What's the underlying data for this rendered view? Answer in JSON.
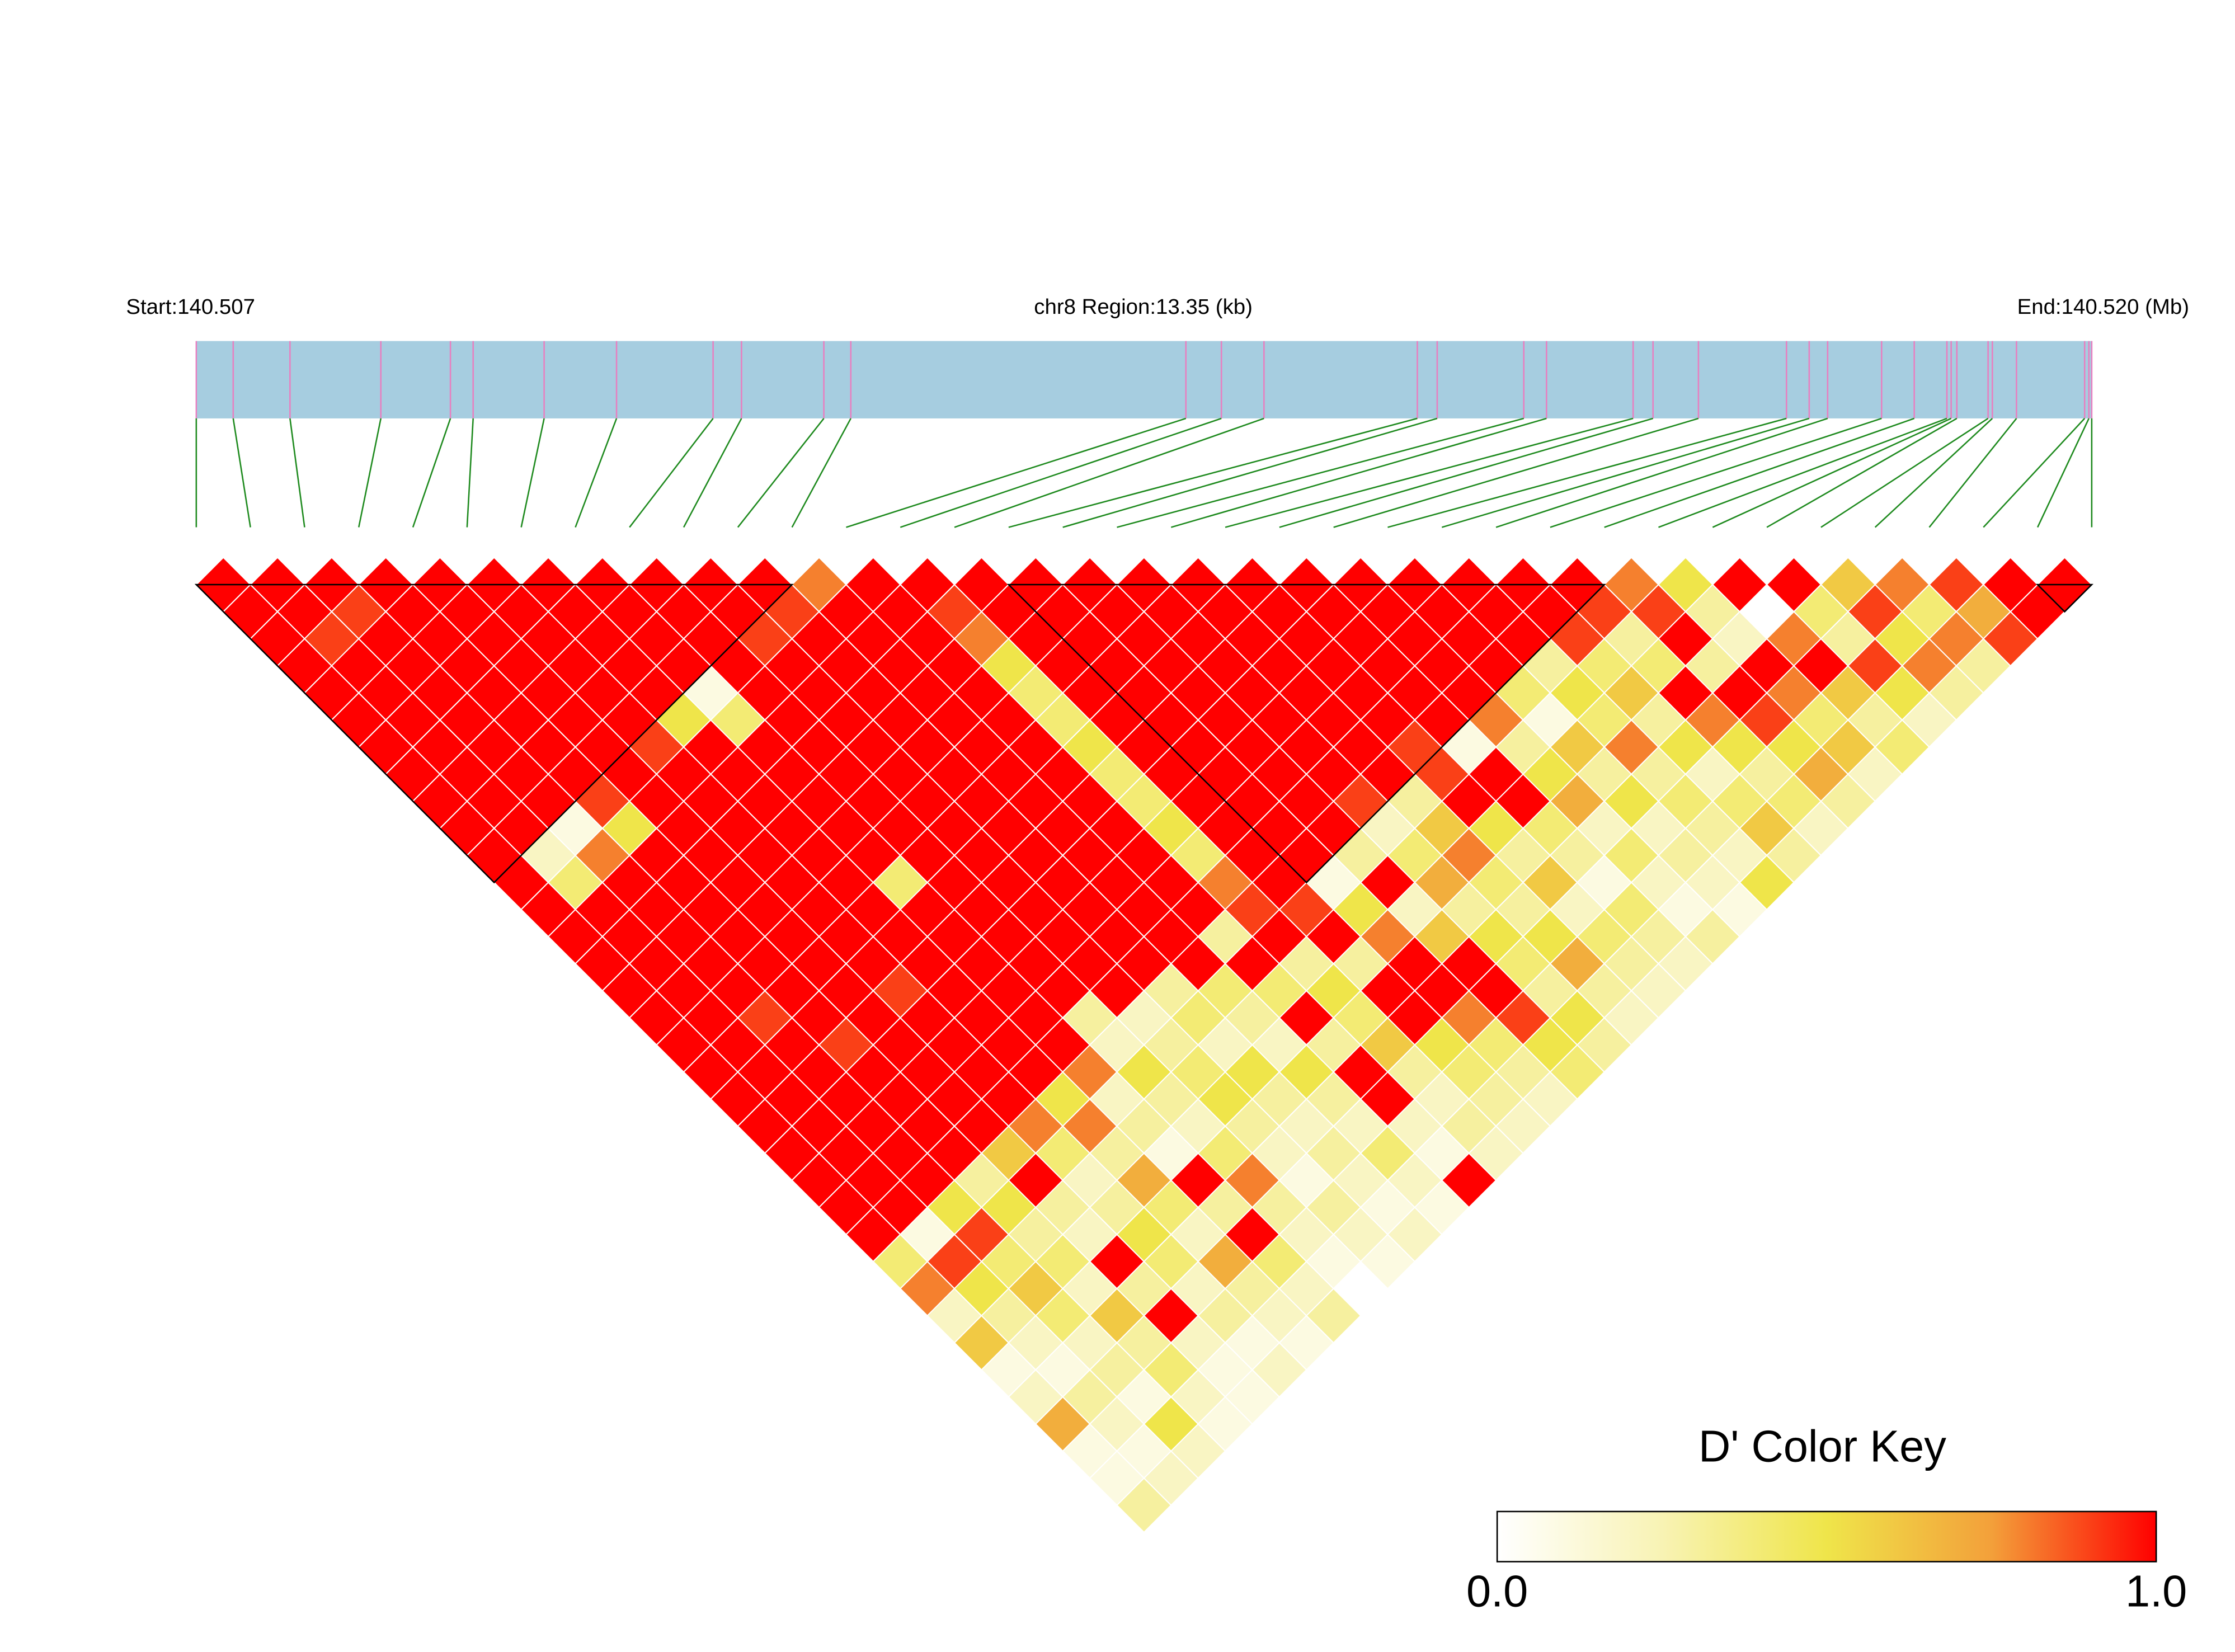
{
  "chart_data": {
    "type": "ld_heatmap",
    "start_label": "Start:140.507",
    "region_label": "chr8 Region:13.35 (kb)",
    "end_label": "End:140.520 (Mb)",
    "key_title": "D' Color Key",
    "key_lim": [
      0,
      1
    ],
    "key_ticks": [
      {
        "value": 0,
        "label": "0.0"
      },
      {
        "value": 1,
        "label": "1.0"
      }
    ],
    "colors": [
      "#ffffff",
      "#f8f3b4",
      "#efe54a",
      "#f3a03a",
      "#ff0000"
    ],
    "track_color": "#a6cde0",
    "marker_color": "#e87fc0",
    "connector_color": "#1e8a1e",
    "xlim": [
      0,
      13.35
    ],
    "positions": [
      0,
      0.26,
      0.66,
      1.3,
      1.79,
      1.95,
      2.45,
      2.96,
      3.64,
      3.84,
      4.42,
      4.61,
      6.97,
      7.22,
      7.52,
      8.6,
      8.74,
      9.35,
      9.51,
      10.12,
      10.26,
      10.58,
      11.2,
      11.36,
      11.49,
      11.87,
      12.1,
      12.33,
      12.36,
      12.4,
      12.62,
      12.65,
      12.82,
      13.3,
      13.33,
      13.35
    ],
    "blocks": [
      [
        0,
        11
      ],
      [
        15,
        26
      ],
      [
        34,
        35
      ]
    ],
    "dprime": [
      [
        1,
        1,
        1,
        1,
        1,
        1,
        1,
        1,
        1,
        1,
        1,
        1,
        1,
        1,
        1,
        1,
        1,
        1,
        1,
        1,
        1,
        1,
        1,
        1,
        1,
        0.4,
        0.8,
        0.2,
        0.6,
        0.1,
        0.2,
        0.7,
        0.1,
        0.1,
        0.3
      ],
      [
        1,
        1,
        0.9,
        1,
        1,
        1,
        1,
        1,
        1,
        1,
        0.2,
        0.4,
        1,
        1,
        1,
        1,
        1,
        1,
        1,
        1,
        1,
        1,
        1,
        1,
        0.1,
        0.9,
        0.5,
        0.3,
        0.2,
        0.1,
        0.3,
        0.2,
        0.1,
        0.2
      ],
      [
        1,
        0.9,
        1,
        1,
        1,
        1,
        1,
        1,
        1,
        0.1,
        0.8,
        1,
        1,
        1,
        1,
        1,
        0.9,
        1,
        1,
        1,
        1,
        1,
        1,
        0.5,
        0.9,
        0.4,
        0.6,
        0.4,
        0.2,
        0.3,
        0.1,
        0.5,
        0.2
      ],
      [
        1,
        1,
        1,
        1,
        1,
        1,
        1,
        1,
        0.9,
        0.5,
        1,
        1,
        1,
        1,
        1,
        1,
        1,
        0.9,
        1,
        1,
        1,
        1,
        0.3,
        0.5,
        0.3,
        0.4,
        0.2,
        0.6,
        0.3,
        0.4,
        0.2,
        0.1
      ],
      [
        1,
        1,
        1,
        1,
        1,
        1,
        1,
        1,
        1,
        1,
        1,
        1,
        1,
        1,
        1,
        1,
        1,
        1,
        1,
        1,
        1,
        0.6,
        1,
        0.3,
        0.2,
        1,
        0.3,
        1,
        0.2,
        0.1,
        0.1
      ],
      [
        1,
        1,
        1,
        1,
        1,
        1,
        0.9,
        1,
        1,
        1,
        1,
        1,
        1,
        1,
        1,
        0.9,
        1,
        1,
        1,
        1,
        0.8,
        0.4,
        0.2,
        0.3,
        0.5,
        0.4,
        0.2,
        0.3,
        0.1,
        0.2
      ],
      [
        1,
        1,
        1,
        1,
        1,
        0.5,
        1,
        1,
        1,
        1,
        1,
        1,
        1,
        1,
        1,
        1,
        1,
        1,
        1,
        0.5,
        0.8,
        0.3,
        0.7,
        0.4,
        0.2,
        0.7,
        0.3,
        0.2,
        0.1
      ],
      [
        1,
        1,
        1,
        1,
        0.1,
        0.4,
        1,
        1,
        1,
        1,
        1,
        0.4,
        1,
        1,
        1,
        1,
        1,
        1,
        0.8,
        0.2,
        0.3,
        0.1,
        1,
        0.3,
        1,
        0.4,
        0.2,
        0.3
      ],
      [
        1,
        1,
        1,
        1,
        1,
        1,
        1,
        1,
        1,
        1,
        1,
        1,
        1,
        1,
        1,
        1,
        0.3,
        0.2,
        0.5,
        0.3,
        0.2,
        0.4,
        0.8,
        0.3,
        0.2,
        0.1
      ],
      [
        1,
        1,
        0.9,
        1,
        1,
        1,
        1,
        1,
        1,
        1,
        1,
        1,
        1,
        1,
        1,
        1,
        0.2,
        0.3,
        0.4,
        0.5,
        0.3,
        0.2,
        0.1,
        0.3,
        0.2,
        0.1
      ],
      [
        1,
        0.9,
        1,
        1,
        1,
        1,
        1,
        1,
        1,
        1,
        1,
        1,
        1,
        1,
        1,
        0.3,
        0.4,
        0.2,
        0.5,
        0.3,
        0.2,
        0.3,
        0.2,
        0.1,
        0.2
      ],
      [
        0.8,
        1,
        1,
        1,
        1,
        1,
        1,
        1,
        1,
        1,
        1,
        1,
        1,
        1,
        1,
        0.4,
        0.3,
        0.2,
        0.5,
        0.3,
        0.2,
        0.4,
        0.2,
        0.1
      ],
      [
        1,
        1,
        1,
        1,
        1,
        1,
        1,
        1,
        1,
        1,
        1,
        1,
        1,
        0.3,
        1,
        0.4,
        1,
        0.3,
        1,
        1,
        0.2,
        0.1,
        1
      ],
      [
        1,
        0.9,
        0.8,
        0.5,
        0.4,
        0.4,
        0.5,
        0.4,
        0.4,
        0.5,
        0.4,
        0.8,
        0.9,
        1,
        0.3,
        0.5,
        0.4,
        0.6,
        0.3,
        0.2,
        0.3,
        0.2
      ],
      [
        1,
        1,
        1,
        1,
        1,
        1,
        1,
        1,
        1,
        1,
        1,
        1,
        0.9,
        1,
        0.3,
        1,
        1,
        0.5,
        0.4,
        0.3,
        0.2
      ],
      [
        1,
        1,
        1,
        1,
        1,
        1,
        1,
        1,
        1,
        1,
        1,
        0.1,
        0.5,
        0.8,
        1,
        1,
        0.8,
        0.4,
        0.3,
        0.2
      ],
      [
        1,
        1,
        1,
        1,
        1,
        1,
        1,
        1,
        1,
        1,
        0.3,
        1,
        0.2,
        0.6,
        1,
        1,
        0.9,
        0.5,
        0.4
      ],
      [
        1,
        1,
        1,
        1,
        1,
        1,
        1,
        1,
        0.9,
        0.2,
        0.4,
        0.7,
        0.3,
        0.5,
        0.4,
        0.3,
        0.5,
        0.3
      ],
      [
        1,
        1,
        1,
        1,
        1,
        1,
        1,
        1,
        0.3,
        0.6,
        0.8,
        0.4,
        0.3,
        0.5,
        0.7,
        0.3,
        0.2
      ],
      [
        1,
        1,
        1,
        1,
        1,
        1,
        0.9,
        0.9,
        1,
        0.5,
        0.3,
        0.6,
        0.2,
        0.4,
        0.3,
        0.2
      ],
      [
        1,
        1,
        1,
        1,
        1,
        1,
        0.1,
        1,
        1,
        0.4,
        0.3,
        0.1,
        0.4,
        0.3,
        0.2
      ],
      [
        1,
        1,
        1,
        1,
        1,
        0.8,
        0.3,
        0.5,
        0.7,
        0.2,
        0.4,
        0.2,
        0.1,
        0.3
      ],
      [
        1,
        1,
        1,
        1,
        0.4,
        0.1,
        0.6,
        0.3,
        0.5,
        0.2,
        0.3,
        0.2,
        0.1
      ],
      [
        1,
        1,
        1,
        0.3,
        0.5,
        0.4,
        0.8,
        0.3,
        0.4,
        0.3,
        0.2,
        0.5
      ],
      [
        1,
        1,
        0.9,
        0.4,
        0.6,
        0.3,
        0.5,
        0.2,
        0.4,
        0.6,
        0.3
      ],
      [
        1,
        0.9,
        0.3,
        0.4,
        1,
        0.8,
        0.5,
        0.3,
        0.4,
        0.2
      ],
      [
        0.8,
        0.9,
        1,
        0.3,
        1,
        0.9,
        0.5,
        0.7,
        0.3
      ],
      [
        0.5,
        0.3,
        0.2,
        1,
        0.8,
        0.4,
        0.6,
        0.2
      ],
      [
        1,
        0,
        0.8,
        1,
        0.6,
        0.3,
        0.4
      ],
      [
        1,
        0.4,
        0.3,
        0.9,
        0.5,
        0.2
      ],
      [
        0.6,
        0.9,
        0.5,
        0.8,
        0.3
      ],
      [
        0.8,
        0.4,
        0.8,
        0.3
      ],
      [
        0.9,
        0.7,
        0.9
      ],
      [
        1,
        1
      ],
      [
        1
      ]
    ]
  }
}
